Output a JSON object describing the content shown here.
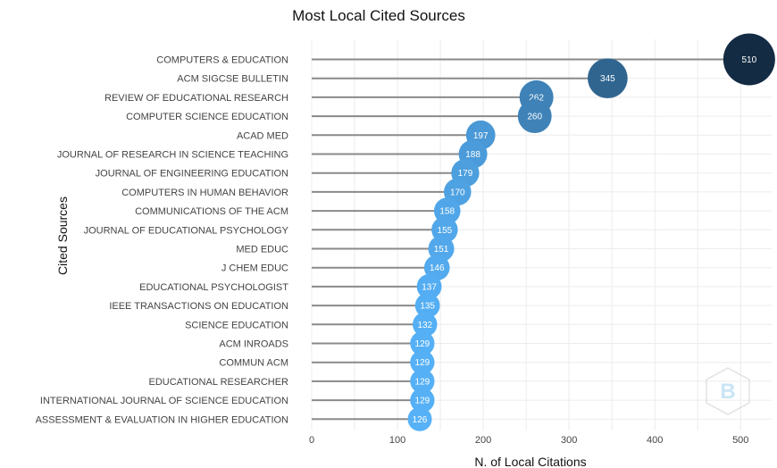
{
  "chart_data": {
    "type": "lollipop",
    "title": "Most Local Cited Sources",
    "xlabel": "N. of Local Citations",
    "ylabel": "Cited Sources",
    "xlim": [
      0,
      535
    ],
    "xticks": [
      0,
      100,
      200,
      300,
      400,
      500
    ],
    "grid": true,
    "categories": [
      "COMPUTERS & EDUCATION",
      "ACM SIGCSE BULLETIN",
      "REVIEW OF EDUCATIONAL RESEARCH",
      "COMPUTER SCIENCE EDUCATION",
      "ACAD MED",
      "JOURNAL OF RESEARCH IN SCIENCE TEACHING",
      "JOURNAL OF ENGINEERING EDUCATION",
      "COMPUTERS IN HUMAN BEHAVIOR",
      "COMMUNICATIONS OF THE ACM",
      "JOURNAL OF EDUCATIONAL PSYCHOLOGY",
      "MED EDUC",
      "J CHEM EDUC",
      "EDUCATIONAL PSYCHOLOGIST",
      "IEEE TRANSACTIONS ON EDUCATION",
      "SCIENCE EDUCATION",
      "ACM INROADS",
      "COMMUN ACM",
      "EDUCATIONAL RESEARCHER",
      "INTERNATIONAL JOURNAL OF SCIENCE EDUCATION",
      "ASSESSMENT & EVALUATION IN HIGHER EDUCATION"
    ],
    "values": [
      510,
      345,
      262,
      260,
      197,
      188,
      179,
      170,
      158,
      155,
      151,
      146,
      137,
      135,
      132,
      129,
      129,
      129,
      129,
      126
    ],
    "colors": {
      "min": "#56b1f7",
      "max": "#132b43"
    }
  },
  "watermark": {
    "text": "B"
  }
}
